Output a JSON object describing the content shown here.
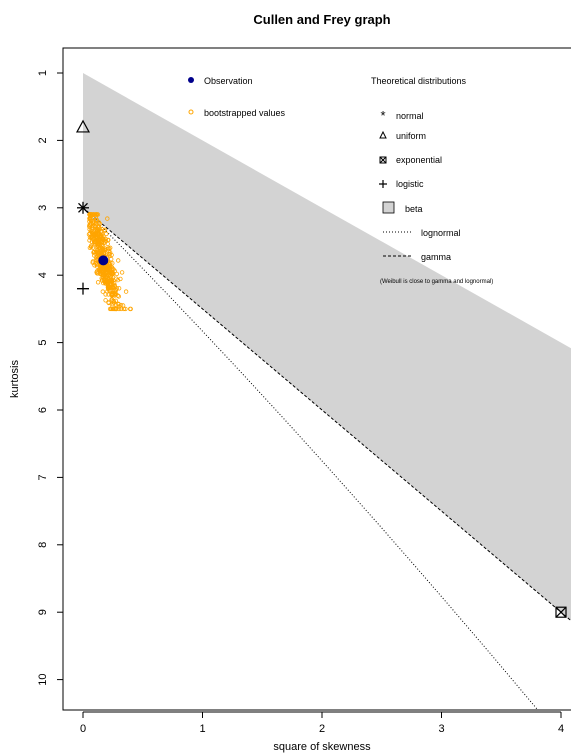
{
  "chart_data": {
    "type": "scatter",
    "title": "Cullen and Frey graph",
    "xlabel": "square of skewness",
    "ylabel": "kurtosis",
    "xlim": [
      0,
      4
    ],
    "ylim": [
      10,
      1
    ],
    "y_axis_inverted": true,
    "x_ticks": [
      0,
      1,
      2,
      3,
      4
    ],
    "y_ticks": [
      1,
      2,
      3,
      4,
      5,
      6,
      7,
      8,
      9,
      10
    ],
    "observation": {
      "x": 0.17,
      "y": 3.78
    },
    "bootstrap_summary": {
      "x_range": [
        0.05,
        0.42
      ],
      "y_range": [
        3.1,
        4.5
      ],
      "count_approx": 500
    },
    "distributions": {
      "normal": {
        "x": 0,
        "y": 3
      },
      "uniform": {
        "x": 0,
        "y": 1.8
      },
      "exponential": {
        "x": 4,
        "y": 9
      },
      "logistic": {
        "x": 0,
        "y": 4.2
      },
      "beta_region": "between kurtosis = skew^2 + 1 and the gamma line kurtosis = 1.5*skew^2 + 3",
      "gamma_line": "kurtosis = 1.5 * skew^2 + 3",
      "lognormal_curve": "parametric in sigma"
    },
    "legend_left": {
      "placement": "top-center",
      "items": [
        "Observation",
        "bootstrapped values"
      ]
    },
    "legend_right": {
      "placement": "top-right",
      "title": "Theoretical distributions",
      "items": [
        "normal",
        "uniform",
        "exponential",
        "logistic",
        "beta",
        "lognormal",
        "gamma"
      ],
      "note": "(Weibull is close to gamma and lognormal)"
    },
    "colors": {
      "observation": "#00008B",
      "bootstrap": "#FFA500",
      "beta_fill": "#D3D3D3"
    }
  }
}
